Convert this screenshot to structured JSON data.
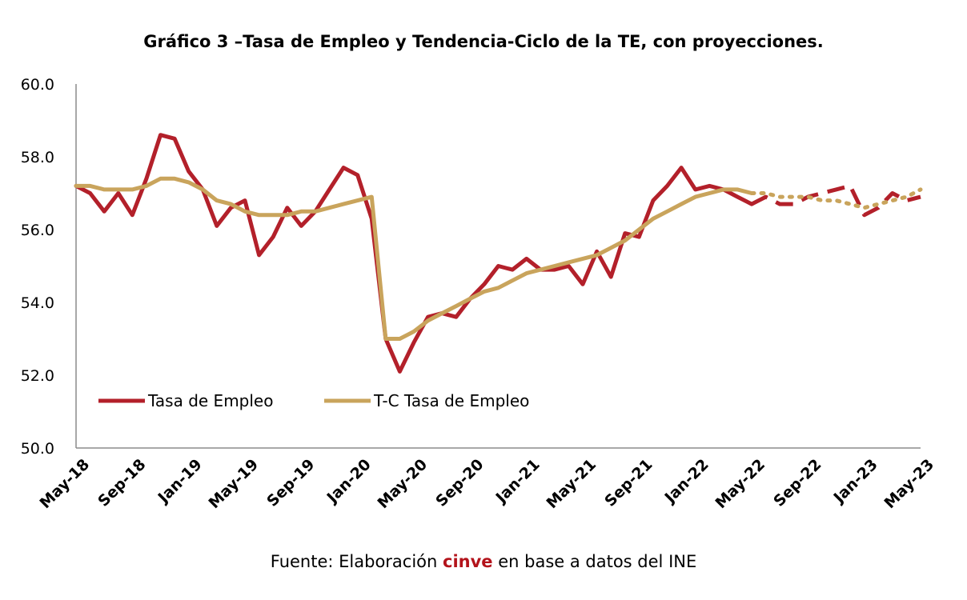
{
  "title": "Gráfico 3 –Tasa de Empleo y Tendencia-Ciclo de la TE, con proyecciones.",
  "source": {
    "prefix": "Fuente: Elaboración ",
    "brand": "cinve",
    "suffix": " en base a datos del INE"
  },
  "colors": {
    "tasa": "#b3202a",
    "tendencia": "#c9a45c",
    "axis": "#8c8c8c",
    "brand": "#b3131b"
  },
  "chart_data": {
    "type": "line",
    "title": "Gráfico 3 –Tasa de Empleo y Tendencia-Ciclo de la TE, con proyecciones.",
    "xlabel": "",
    "ylabel": "",
    "ylim": [
      50,
      60
    ],
    "yticks": [
      "50.0",
      "52.0",
      "54.0",
      "56.0",
      "58.0",
      "60.0"
    ],
    "x": [
      "May-18",
      "Jun-18",
      "Jul-18",
      "Aug-18",
      "Sep-18",
      "Oct-18",
      "Nov-18",
      "Dec-18",
      "Jan-19",
      "Feb-19",
      "Mar-19",
      "Apr-19",
      "May-19",
      "Jun-19",
      "Jul-19",
      "Aug-19",
      "Sep-19",
      "Oct-19",
      "Nov-19",
      "Dec-19",
      "Jan-20",
      "Feb-20",
      "Mar-20",
      "Apr-20",
      "May-20",
      "Jun-20",
      "Jul-20",
      "Aug-20",
      "Sep-20",
      "Oct-20",
      "Nov-20",
      "Dec-20",
      "Jan-21",
      "Feb-21",
      "Mar-21",
      "Apr-21",
      "May-21",
      "Jun-21",
      "Jul-21",
      "Aug-21",
      "Sep-21",
      "Oct-21",
      "Nov-21",
      "Dec-21",
      "Jan-22",
      "Feb-22",
      "Mar-22",
      "Apr-22",
      "May-22",
      "Jun-22",
      "Jul-22",
      "Aug-22",
      "Sep-22",
      "Oct-22",
      "Nov-22",
      "Dec-22",
      "Jan-23",
      "Feb-23",
      "Mar-23",
      "Apr-23",
      "May-23"
    ],
    "xtick_labels": [
      "May-18",
      "Sep-18",
      "Jan-19",
      "May-19",
      "Sep-19",
      "Jan-20",
      "May-20",
      "Sep-20",
      "Jan-21",
      "May-21",
      "Sep-21",
      "Jan-22",
      "May-22",
      "Sep-22",
      "Jan-23",
      "May-23"
    ],
    "grid": false,
    "legend_position": "bottom-left",
    "series": [
      {
        "name": "Tasa de Empleo",
        "style": "solid",
        "projection_style": "dashed",
        "projection_from": "May-22",
        "values": [
          57.2,
          57.0,
          56.5,
          57.0,
          56.4,
          57.4,
          58.6,
          58.5,
          57.6,
          57.1,
          56.1,
          56.6,
          56.8,
          55.3,
          55.8,
          56.6,
          56.1,
          56.5,
          57.1,
          57.7,
          57.5,
          56.3,
          53.0,
          52.1,
          52.9,
          53.6,
          53.7,
          53.6,
          54.1,
          54.5,
          55.0,
          54.9,
          55.2,
          54.9,
          54.9,
          55.0,
          54.5,
          55.4,
          54.7,
          55.9,
          55.8,
          56.8,
          57.2,
          57.7,
          57.1,
          57.2,
          57.1,
          56.9,
          56.7,
          56.9,
          56.7,
          56.7,
          56.9,
          57.0,
          57.1,
          57.2,
          56.4,
          56.6,
          57.0,
          56.8,
          56.9
        ]
      },
      {
        "name": "T-C Tasa de Empleo",
        "style": "solid",
        "projection_style": "dotted",
        "projection_from": "May-22",
        "values": [
          57.2,
          57.2,
          57.1,
          57.1,
          57.1,
          57.2,
          57.4,
          57.4,
          57.3,
          57.1,
          56.8,
          56.7,
          56.5,
          56.4,
          56.4,
          56.4,
          56.5,
          56.5,
          56.6,
          56.7,
          56.8,
          56.9,
          53.0,
          53.0,
          53.2,
          53.5,
          53.7,
          53.9,
          54.1,
          54.3,
          54.4,
          54.6,
          54.8,
          54.9,
          55.0,
          55.1,
          55.2,
          55.3,
          55.5,
          55.7,
          56.0,
          56.3,
          56.5,
          56.7,
          56.9,
          57.0,
          57.1,
          57.1,
          57.0,
          57.0,
          56.9,
          56.9,
          56.9,
          56.8,
          56.8,
          56.7,
          56.6,
          56.7,
          56.8,
          56.9,
          57.1
        ]
      }
    ]
  }
}
